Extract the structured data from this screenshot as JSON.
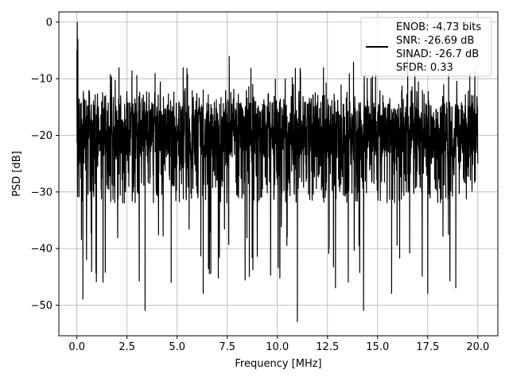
{
  "chart_data": {
    "type": "line",
    "title": "",
    "xlabel": "Frequency [MHz]",
    "ylabel": "PSD [dB]",
    "xlim": [
      -0.9,
      21.0
    ],
    "ylim": [
      -55.4,
      1.8
    ],
    "x_ticks": [
      0.0,
      2.5,
      5.0,
      7.5,
      10.0,
      12.5,
      15.0,
      17.5,
      20.0
    ],
    "x_tick_labels": [
      "0.0",
      "2.5",
      "5.0",
      "7.5",
      "10.0",
      "12.5",
      "15.0",
      "17.5",
      "20.0"
    ],
    "y_ticks": [
      0,
      -10,
      -20,
      -30,
      -40,
      -50
    ],
    "y_tick_labels": [
      "0",
      "−10",
      "−20",
      "−30",
      "−40",
      "−50"
    ],
    "grid": true,
    "legend_position": "top-right",
    "legend": [
      "ENOB: -4.73 bits",
      "SNR: -26.69 dB",
      "SINAD: -26.7 dB",
      "SFDR: 0.33"
    ],
    "series": [
      {
        "color": "#000000",
        "noise_envelope": {
          "x_range": [
            0.0,
            20.0
          ],
          "typical_top": -12,
          "typical_bottom": -32,
          "median": -22
        },
        "x": [
          0.0,
          0.02,
          0.05,
          0.1,
          0.3,
          0.6,
          1.3,
          2.1,
          3.4,
          3.9,
          4.7,
          5.3,
          6.3,
          7.6,
          8.6,
          9.9,
          11.0,
          12.3,
          12.9,
          13.8,
          14.3,
          14.9,
          15.7,
          16.5,
          17.5,
          18.3,
          18.9,
          19.6,
          20.0
        ],
        "values": [
          -5,
          0,
          -3,
          -26,
          -49,
          -12,
          -46,
          -8,
          -51,
          -9,
          -46,
          -8,
          -48,
          -6,
          -45,
          -10,
          -53,
          -8,
          -47,
          -7,
          -51,
          -9,
          -48,
          -6,
          -48,
          -11,
          -47,
          -9,
          -25
        ]
      }
    ]
  }
}
